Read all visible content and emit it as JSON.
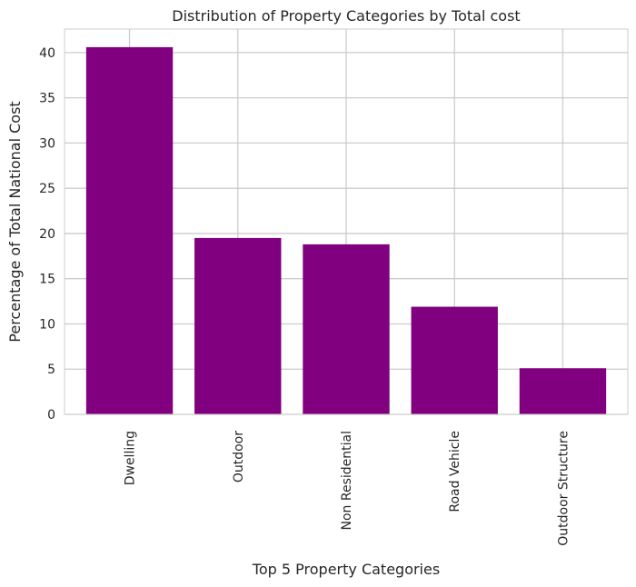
{
  "chart_data": {
    "type": "bar",
    "title": "Distribution of Property Categories by Total cost",
    "xlabel": "Top 5 Property Categories",
    "ylabel": "Percentage of Total National Cost",
    "categories": [
      "Dwelling",
      "Outdoor",
      "Non Residential",
      "Road Vehicle",
      "Outdoor Structure"
    ],
    "values": [
      40.6,
      19.5,
      18.8,
      11.9,
      5.1
    ],
    "ylim": [
      0,
      42.6
    ],
    "yticks": [
      0,
      5,
      10,
      15,
      20,
      25,
      30,
      35,
      40
    ],
    "grid": true,
    "bar_color": "#800080",
    "grid_color": "#cccccc",
    "x_tick_rotation": "vertical"
  }
}
